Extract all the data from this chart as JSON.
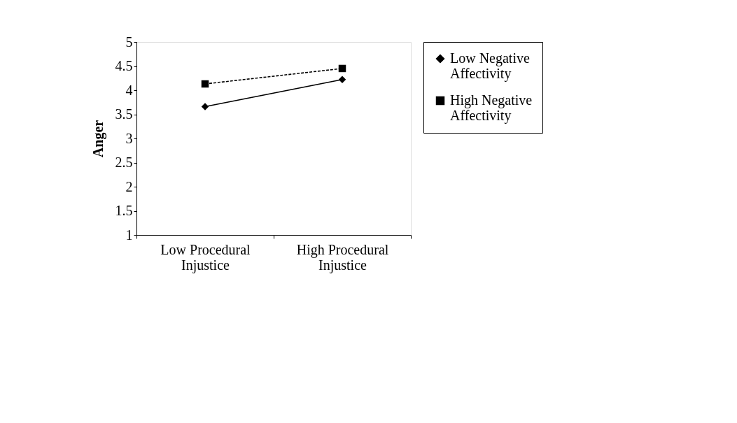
{
  "chart_data": {
    "type": "line",
    "ylabel": "Anger",
    "categories": [
      "Low Procedural Injustice",
      "High Procedural Injustice"
    ],
    "series": [
      {
        "name": "Low Negative Affectivity",
        "color": "#000000",
        "values": [
          3.66,
          4.22
        ],
        "marker": "diamond",
        "line_style": "solid"
      },
      {
        "name": "High Negative Affectivity",
        "color": "#000000",
        "values": [
          4.13,
          4.45
        ],
        "marker": "square",
        "line_style": "dashed"
      }
    ],
    "ylim": [
      1,
      5
    ],
    "yticks": [
      1,
      1.5,
      2,
      2.5,
      3,
      3.5,
      4,
      4.5,
      5
    ],
    "grid": false,
    "legend": "right"
  }
}
